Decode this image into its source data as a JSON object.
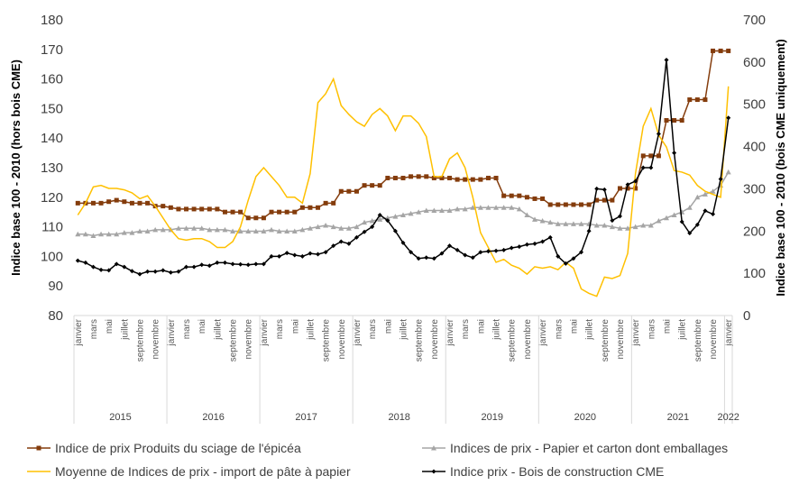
{
  "chart_data": {
    "type": "line",
    "y_label": "Indice base 100 - 2010 (hors bois CME)",
    "y2_label": "Indice base 100 - 2010 (bois CME uniquement)",
    "categories": [
      "janvier",
      null,
      "mars",
      null,
      "mai",
      null,
      "juillet",
      null,
      "septembre",
      null,
      "novembre",
      null,
      "janvier",
      null,
      "mars",
      null,
      "mai",
      null,
      "juillet",
      null,
      "septembre",
      null,
      "novembre",
      null,
      "janvier",
      null,
      "mars",
      null,
      "mai",
      null,
      "juillet",
      null,
      "septembre",
      null,
      "novembre",
      null,
      "janvier",
      null,
      "mars",
      null,
      "mai",
      null,
      "juillet",
      null,
      "septembre",
      null,
      "novembre",
      null,
      "janvier",
      null,
      "mars",
      null,
      "mai",
      null,
      "juillet",
      null,
      "septembre",
      null,
      "novembre",
      null,
      "janvier",
      null,
      "mars",
      null,
      "mai",
      null,
      "juillet",
      null,
      "septembre",
      null,
      "novembre",
      null,
      "janvier",
      null,
      "mars",
      null,
      "mai",
      null,
      "juillet",
      null,
      "septembre",
      null,
      "novembre",
      null,
      "janvier"
    ],
    "years": [
      "2015",
      "2016",
      "2017",
      "2018",
      "2019",
      "2020",
      "2021",
      "2022"
    ],
    "ylim": [
      80,
      180
    ],
    "yticks": [
      80,
      90,
      100,
      110,
      120,
      130,
      140,
      150,
      160,
      170,
      180
    ],
    "y2lim": [
      0,
      700
    ],
    "y2ticks": [
      0,
      100,
      200,
      300,
      400,
      500,
      600,
      700
    ],
    "series": [
      {
        "name": "Indice de prix Produits du sciage de l'épicéa",
        "color": "#843c0c",
        "marker": "square",
        "values": [
          118,
          118,
          118,
          118,
          118.5,
          119,
          118.5,
          118,
          118,
          118,
          117,
          117,
          116.5,
          116,
          116,
          116,
          116,
          116,
          116,
          115,
          115,
          115,
          113,
          113,
          113,
          115,
          115,
          115,
          115,
          116.5,
          116.5,
          116.5,
          118,
          118,
          122,
          122,
          122,
          124,
          124,
          124,
          126.5,
          126.5,
          126.5,
          127,
          127,
          127,
          126.5,
          126.5,
          126.5,
          126,
          126,
          126,
          126,
          126.5,
          126.5,
          120.5,
          120.5,
          120.5,
          120,
          119.5,
          119.5,
          117.5,
          117.5,
          117.5,
          117.5,
          117.5,
          117.5,
          119,
          119,
          119,
          123,
          123,
          123,
          134,
          134,
          134,
          146,
          146,
          146,
          153,
          153,
          153,
          169.5,
          169.5,
          169.5
        ]
      },
      {
        "name": "Indices de prix - Papier et carton dont emballages",
        "color": "#a5a5a5",
        "marker": "triangle",
        "values": [
          107.5,
          107.5,
          107,
          107.5,
          107.5,
          107.5,
          108,
          108,
          108.5,
          108.5,
          109,
          109,
          109,
          109.5,
          109.5,
          109.5,
          109.5,
          109,
          109,
          109,
          108.5,
          108.5,
          108.5,
          108.5,
          108.5,
          109,
          108.5,
          108.5,
          108.5,
          109,
          109.5,
          110,
          110.5,
          110,
          109.5,
          109.5,
          110,
          111.5,
          112,
          112.5,
          113,
          113.5,
          114,
          114.5,
          115,
          115.5,
          115.5,
          115.5,
          115.5,
          116,
          116,
          116.5,
          116.5,
          116.5,
          116.5,
          116.5,
          116.5,
          116,
          114,
          112.5,
          112,
          111.5,
          111,
          111,
          111,
          111,
          111,
          110.5,
          110.5,
          110,
          109.5,
          109.5,
          110,
          110.5,
          110.5,
          112,
          113,
          114,
          115,
          116.5,
          120,
          121,
          122,
          124,
          128.5
        ]
      },
      {
        "name": "Moyenne de Indices de prix - import de pâte à papier",
        "color": "#ffc000",
        "marker": "none",
        "values": [
          114,
          118,
          123.5,
          124,
          123,
          123,
          122.5,
          121.5,
          119.5,
          120.5,
          117,
          113,
          109,
          106,
          105.5,
          106,
          106,
          105,
          103,
          103,
          105,
          110,
          119,
          127,
          130,
          127,
          124,
          120,
          120,
          118,
          128,
          152,
          155,
          160,
          151,
          148,
          145.5,
          144,
          148,
          150,
          147.5,
          142.5,
          147.5,
          147.5,
          145,
          140.5,
          127,
          127,
          133,
          135,
          130,
          120,
          108,
          103,
          98,
          99,
          97,
          96,
          94,
          96.5,
          96,
          96.5,
          95.5,
          98,
          96,
          89,
          87.5,
          86.5,
          93,
          92.5,
          93.5,
          101,
          128,
          144,
          150,
          141,
          137,
          129,
          128.5,
          127.5,
          124,
          122,
          121,
          120,
          157.5
        ]
      },
      {
        "name": "Indice prix - Bois de construction CME",
        "color": "#000000",
        "marker": "diamond",
        "axis": "y2",
        "values": [
          130,
          125,
          115,
          108,
          107,
          122,
          115,
          105,
          98,
          104,
          104,
          107,
          102,
          104,
          115,
          115,
          120,
          118,
          125,
          125,
          122,
          121,
          120,
          122,
          122,
          140,
          140,
          148,
          143,
          140,
          147,
          145,
          150,
          165,
          175,
          170,
          185,
          198,
          210,
          238,
          225,
          200,
          172,
          150,
          135,
          137,
          135,
          147,
          165,
          155,
          143,
          137,
          150,
          152,
          153,
          155,
          160,
          163,
          168,
          170,
          175,
          185,
          140,
          123,
          135,
          150,
          200,
          300,
          298,
          225,
          235,
          310,
          318,
          350,
          350,
          430,
          605,
          385,
          222,
          195,
          215,
          248,
          240,
          323,
          468
        ]
      }
    ]
  }
}
